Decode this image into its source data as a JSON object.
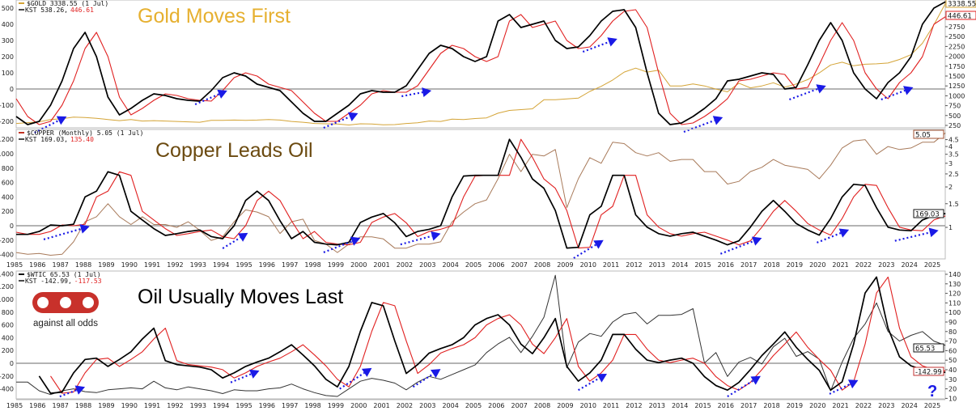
{
  "x_axis": {
    "years": [
      1985,
      1986,
      1987,
      1988,
      1989,
      1990,
      1991,
      1992,
      1993,
      1994,
      1995,
      1996,
      1997,
      1998,
      1999,
      2000,
      2001,
      2002,
      2003,
      2004,
      2005,
      2006,
      2007,
      2008,
      2009,
      2010,
      2011,
      2012,
      2013,
      2014,
      2015,
      2016,
      2017,
      2018,
      2019,
      2020,
      2021,
      2022,
      2023,
      2024,
      2025
    ]
  },
  "logo": {
    "text": "against all odds",
    "mark": "aao",
    "color": "#c8312b"
  },
  "question_mark": "?",
  "chart_data": [
    {
      "type": "line",
      "title": "Gold Moves First",
      "title_color": "#e6b030",
      "legend": {
        "price_label": "$GOLD 3338.55 (1 Jul)",
        "kst_label": "KST 538.26,",
        "signal_label": "446.61"
      },
      "price_color": "#d4a437",
      "price_scale": "linear",
      "t_start": 1985,
      "t_step": 0.5,
      "kst_ticks": [
        500,
        400,
        300,
        200,
        100,
        0,
        -100,
        -200
      ],
      "price_ticks": [
        250,
        500,
        750,
        1000,
        1250,
        1500,
        1750,
        2000,
        2250,
        2500,
        2750
      ],
      "tags": {
        "price": "3338.55",
        "signal": "446.61"
      },
      "kst": [
        -170,
        -220,
        -200,
        -100,
        50,
        250,
        350,
        200,
        -50,
        -160,
        -120,
        -70,
        -30,
        -40,
        -60,
        -70,
        -75,
        -10,
        70,
        100,
        80,
        30,
        10,
        -10,
        -80,
        -150,
        -200,
        -200,
        -150,
        -100,
        -30,
        -10,
        -20,
        -20,
        20,
        120,
        220,
        270,
        250,
        200,
        170,
        200,
        420,
        460,
        380,
        400,
        420,
        300,
        250,
        260,
        330,
        420,
        480,
        490,
        380,
        100,
        -150,
        -220,
        -210,
        -170,
        -120,
        -60,
        50,
        60,
        80,
        100,
        90,
        0,
        10,
        150,
        300,
        410,
        300,
        100,
        0,
        -60,
        40,
        100,
        200,
        400,
        500,
        538.26
      ],
      "signal": [
        -60,
        -170,
        -220,
        -200,
        -100,
        50,
        250,
        350,
        200,
        -50,
        -160,
        -120,
        -70,
        -30,
        -40,
        -60,
        -70,
        -75,
        -10,
        70,
        100,
        80,
        30,
        10,
        -10,
        -80,
        -150,
        -200,
        -200,
        -150,
        -100,
        -30,
        -10,
        -20,
        -20,
        20,
        120,
        220,
        270,
        250,
        200,
        170,
        200,
        420,
        460,
        380,
        400,
        420,
        300,
        250,
        260,
        330,
        420,
        480,
        490,
        380,
        100,
        -150,
        -220,
        -210,
        -170,
        -120,
        -60,
        50,
        60,
        80,
        100,
        90,
        0,
        10,
        150,
        300,
        410,
        300,
        100,
        0,
        -60,
        40,
        100,
        200,
        400,
        446.61
      ],
      "price": [
        300,
        320,
        340,
        400,
        420,
        460,
        450,
        430,
        400,
        370,
        400,
        360,
        370,
        360,
        350,
        340,
        330,
        380,
        380,
        385,
        380,
        385,
        400,
        385,
        350,
        330,
        300,
        290,
        285,
        260,
        290,
        285,
        265,
        270,
        300,
        315,
        360,
        350,
        410,
        400,
        425,
        440,
        560,
        630,
        650,
        670,
        900,
        900,
        920,
        940,
        1110,
        1240,
        1400,
        1600,
        1700,
        1600,
        1650,
        1250,
        1250,
        1300,
        1250,
        1170,
        1100,
        1320,
        1200,
        1250,
        1330,
        1220,
        1300,
        1410,
        1580,
        1780,
        1850,
        1760,
        1800,
        1810,
        1830,
        1920,
        2040,
        2330,
        2800,
        3338.55
      ],
      "arrows": [
        [
          1985.8,
          -270,
          1987.2,
          -170
        ],
        [
          1992.8,
          -95,
          1994.2,
          -10
        ],
        [
          1998.4,
          -240,
          1999.9,
          -150
        ],
        [
          2001.8,
          -45,
          2003.1,
          -10
        ],
        [
          2009.7,
          230,
          2011.2,
          310
        ],
        [
          2014.1,
          -265,
          2015.8,
          -175
        ],
        [
          2018.7,
          -65,
          2020.3,
          20
        ],
        [
          2022.7,
          -65,
          2024.1,
          10
        ]
      ]
    },
    {
      "type": "line",
      "title": "Copper Leads Oil",
      "title_color": "#6b4a10",
      "legend": {
        "price_label": "$COPPER (Monthly) 5.05 (1 Jul)",
        "kst_label": "KST 169.03,",
        "signal_label": "135.40"
      },
      "price_color": "#a87a5a",
      "price_scale": "log",
      "t_start": 1985,
      "t_step": 0.5,
      "kst_ticks": [
        1200,
        1000,
        800,
        600,
        400,
        200,
        0,
        -200,
        -400
      ],
      "price_ticks": [
        1.0,
        1.5,
        2.0,
        2.5,
        3.0,
        3.5,
        4.0,
        4.5
      ],
      "tags": {
        "price": "5.05",
        "kst": "169.03"
      },
      "kst": [
        -120,
        -120,
        -80,
        10,
        0,
        20,
        400,
        480,
        750,
        700,
        200,
        80,
        -40,
        -135,
        -110,
        -80,
        -60,
        -150,
        -180,
        0,
        350,
        480,
        350,
        70,
        -180,
        -80,
        -230,
        -255,
        -265,
        -230,
        45,
        120,
        170,
        40,
        -150,
        -80,
        -50,
        0,
        400,
        690,
        700,
        700,
        700,
        1200,
        950,
        650,
        520,
        210,
        -310,
        -300,
        150,
        270,
        700,
        700,
        150,
        -20,
        -110,
        -145,
        -110,
        -90,
        -145,
        -200,
        -265,
        -210,
        -20,
        200,
        350,
        200,
        30,
        -60,
        -130,
        100,
        400,
        575,
        560,
        250,
        -20,
        -60,
        -70,
        80,
        140,
        169.03
      ],
      "signal": [
        -90,
        -120,
        -120,
        -80,
        10,
        0,
        20,
        400,
        480,
        750,
        700,
        200,
        80,
        -40,
        -135,
        -110,
        -80,
        -60,
        -150,
        -180,
        0,
        350,
        480,
        350,
        70,
        -180,
        -80,
        -230,
        -255,
        -265,
        -230,
        45,
        120,
        170,
        40,
        -150,
        -80,
        -50,
        0,
        400,
        690,
        700,
        700,
        700,
        1200,
        950,
        650,
        520,
        210,
        -310,
        -300,
        150,
        270,
        700,
        700,
        150,
        -20,
        -110,
        -145,
        -110,
        -90,
        -145,
        -200,
        -265,
        -210,
        -20,
        200,
        350,
        200,
        30,
        -60,
        -130,
        100,
        400,
        575,
        560,
        250,
        -20,
        -60,
        -70,
        80,
        135.4
      ],
      "price": [
        0.65,
        0.63,
        0.64,
        0.62,
        0.63,
        0.78,
        1.1,
        1.2,
        1.5,
        1.2,
        1.05,
        1.2,
        1.05,
        1.05,
        1.0,
        1.1,
        0.95,
        0.8,
        0.85,
        1.1,
        1.35,
        1.3,
        1.2,
        0.9,
        1.1,
        1.15,
        0.8,
        0.75,
        0.65,
        0.75,
        0.85,
        0.85,
        0.82,
        0.7,
        0.7,
        0.75,
        0.75,
        0.78,
        1.1,
        1.3,
        1.5,
        1.6,
        2.3,
        3.5,
        2.6,
        3.5,
        3.4,
        3.8,
        1.4,
        2.3,
        3.3,
        3.0,
        4.3,
        4.2,
        3.6,
        3.4,
        3.6,
        3.1,
        3.2,
        3.2,
        2.6,
        2.6,
        2.1,
        2.2,
        2.6,
        2.8,
        3.2,
        2.9,
        2.8,
        2.7,
        2.3,
        2.9,
        3.9,
        4.4,
        4.5,
        3.5,
        4.0,
        3.8,
        3.9,
        4.3,
        4.3,
        5.05
      ],
      "arrows": [
        [
          1986.2,
          -190,
          1988.2,
          -10
        ],
        [
          1994.0,
          -315,
          1995.1,
          -100
        ],
        [
          1998.4,
          -370,
          2000.0,
          -170
        ],
        [
          2001.75,
          -260,
          2003.5,
          -110
        ],
        [
          2009.3,
          -450,
          2010.6,
          -200
        ],
        [
          2015.7,
          -390,
          2017.5,
          -170
        ],
        [
          2019.9,
          -235,
          2021.3,
          -55
        ],
        [
          2023.3,
          -210,
          2025.2,
          -65
        ]
      ]
    },
    {
      "type": "line",
      "title": "Oil Usually Moves Last",
      "title_color": "#000000",
      "legend": {
        "price_label": "$WTIC 65.53 (1 Jul)",
        "kst_label": "KST -142.99,",
        "signal_label": "-117.53"
      },
      "price_color": "#333333",
      "price_scale": "linear",
      "t_start": 1985,
      "t_step": 0.5,
      "kst_ticks": [
        1400,
        1200,
        1000,
        800,
        600,
        400,
        200,
        0,
        -200,
        -400
      ],
      "price_ticks": [
        10,
        20,
        30,
        40,
        50,
        60,
        70,
        80,
        90,
        100,
        110,
        120,
        130,
        140
      ],
      "tags": {
        "price": "65.53",
        "kst": "-142.99"
      },
      "kst": [
        null,
        null,
        -200,
        -470,
        -450,
        -150,
        60,
        80,
        -50,
        60,
        180,
        380,
        550,
        40,
        -20,
        -40,
        -60,
        -100,
        -230,
        -150,
        -50,
        20,
        80,
        180,
        290,
        130,
        -40,
        -250,
        -370,
        -50,
        500,
        950,
        900,
        350,
        -160,
        -20,
        160,
        230,
        290,
        400,
        600,
        700,
        760,
        600,
        300,
        150,
        400,
        700,
        -50,
        -280,
        -150,
        50,
        450,
        450,
        220,
        50,
        10,
        50,
        80,
        0,
        -210,
        -350,
        -420,
        -300,
        -100,
        120,
        300,
        490,
        250,
        60,
        -110,
        -420,
        -290,
        300,
        1100,
        1350,
        550,
        100,
        -40,
        -100,
        -120,
        -142.99
      ],
      "signal": [
        null,
        null,
        null,
        -200,
        -470,
        -450,
        -150,
        60,
        80,
        -50,
        60,
        180,
        380,
        550,
        40,
        -20,
        -40,
        -60,
        -100,
        -230,
        -150,
        -50,
        20,
        80,
        180,
        290,
        130,
        -40,
        -250,
        -370,
        -50,
        500,
        950,
        900,
        350,
        -160,
        -20,
        160,
        230,
        290,
        400,
        600,
        700,
        760,
        600,
        300,
        150,
        400,
        700,
        -50,
        -280,
        -150,
        50,
        450,
        450,
        220,
        50,
        10,
        50,
        80,
        0,
        -210,
        -350,
        -420,
        -300,
        -100,
        120,
        300,
        490,
        250,
        60,
        -110,
        -420,
        -290,
        300,
        1100,
        1350,
        550,
        100,
        -40,
        -100,
        -117.53
      ],
      "price": [
        27,
        27,
        18,
        14,
        18,
        20,
        17,
        16,
        19,
        20,
        21,
        20,
        28,
        21,
        19,
        22,
        20,
        18,
        15,
        19,
        18,
        18,
        20,
        21,
        25,
        20,
        16,
        13,
        12,
        20,
        28,
        31,
        29,
        26,
        19,
        27,
        33,
        30,
        35,
        40,
        45,
        58,
        67,
        74,
        58,
        75,
        95,
        139,
        42,
        69,
        78,
        75,
        90,
        98,
        100,
        88,
        97,
        97,
        98,
        104,
        47,
        58,
        33,
        48,
        53,
        46,
        64,
        73,
        54,
        59,
        51,
        18,
        48,
        73,
        88,
        110,
        80,
        70,
        76,
        80,
        70,
        65.53
      ],
      "arrows": [
        [
          1986.9,
          -520,
          1988.0,
          -370
        ],
        [
          1994.35,
          -300,
          1995.6,
          -115
        ],
        [
          1999.1,
          -400,
          2000.5,
          -75
        ],
        [
          2002.3,
          -370,
          2003.5,
          -90
        ],
        [
          2009.5,
          -420,
          2010.75,
          -165
        ],
        [
          2016.0,
          -520,
          2017.45,
          -200
        ],
        [
          2020.45,
          -480,
          2021.7,
          -265
        ]
      ]
    }
  ],
  "colors": {
    "kst": "#000000",
    "signal": "#e02020",
    "arrow": "#1a1ae6",
    "zero_line": "#888888"
  }
}
